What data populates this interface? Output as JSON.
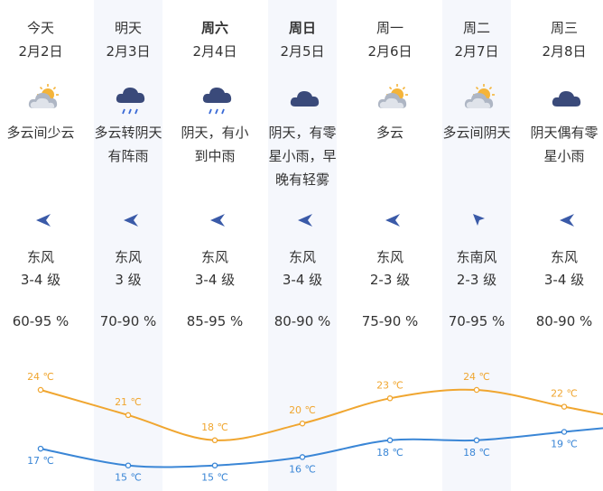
{
  "days": [
    {
      "day": "今天",
      "date": "2月2日",
      "desc": [
        "多云间少云"
      ],
      "icon": "partly-cloudy-icon",
      "wind_icon": "arrow-left-icon",
      "wind": "东风",
      "level": "3-4 级",
      "humidity": "60-95 %",
      "bold": false
    },
    {
      "day": "明天",
      "date": "2月3日",
      "desc": [
        "多云转阴天",
        "有阵雨"
      ],
      "icon": "rain-cloud-icon",
      "wind_icon": "arrow-left-icon",
      "wind": "东风",
      "level": "3 级",
      "humidity": "70-90 %",
      "bold": false
    },
    {
      "day": "周六",
      "date": "2月4日",
      "desc": [
        "阴天，有小",
        "到中雨"
      ],
      "icon": "rain-cloud-icon",
      "wind_icon": "arrow-left-icon",
      "wind": "东风",
      "level": "3-4 级",
      "humidity": "85-95 %",
      "bold": true
    },
    {
      "day": "周日",
      "date": "2月5日",
      "desc": [
        "阴天，有零",
        "星小雨，早",
        "晚有轻雾"
      ],
      "icon": "cloud-icon",
      "wind_icon": "arrow-left-icon",
      "wind": "东风",
      "level": "3-4 级",
      "humidity": "80-90 %",
      "bold": true
    },
    {
      "day": "周一",
      "date": "2月6日",
      "desc": [
        "多云"
      ],
      "icon": "partly-cloudy-icon",
      "wind_icon": "arrow-left-icon",
      "wind": "东风",
      "level": "2-3 级",
      "humidity": "75-90 %",
      "bold": false
    },
    {
      "day": "周二",
      "date": "2月7日",
      "desc": [
        "多云间阴天"
      ],
      "icon": "partly-cloudy-icon",
      "wind_icon": "arrow-upleft-icon",
      "wind": "东南风",
      "level": "2-3 级",
      "humidity": "70-95 %",
      "bold": false
    },
    {
      "day": "周三",
      "date": "2月8日",
      "desc": [
        "阴天偶有零",
        "星小雨"
      ],
      "icon": "cloud-icon",
      "wind_icon": "arrow-left-icon",
      "wind": "东风",
      "level": "3-4 级",
      "humidity": "80-90 %",
      "bold": false
    }
  ],
  "chart_data": {
    "type": "line",
    "x": [
      "2月2日",
      "2月3日",
      "2月4日",
      "2月5日",
      "2月6日",
      "2月7日",
      "2月8日"
    ],
    "series": [
      {
        "values": [
          24,
          21,
          18,
          20,
          23,
          24,
          22
        ],
        "labels": [
          "24 ℃",
          "21 ℃",
          "18 ℃",
          "20 ℃",
          "23 ℃",
          "24 ℃",
          "22 ℃"
        ],
        "color": "#f0a630"
      },
      {
        "values": [
          17,
          15,
          15,
          16,
          18,
          18,
          19
        ],
        "labels": [
          "17 ℃",
          "15 ℃",
          "15 ℃",
          "16 ℃",
          "18 ℃",
          "18 ℃",
          "19 ℃"
        ],
        "color": "#3a86d6"
      }
    ]
  }
}
